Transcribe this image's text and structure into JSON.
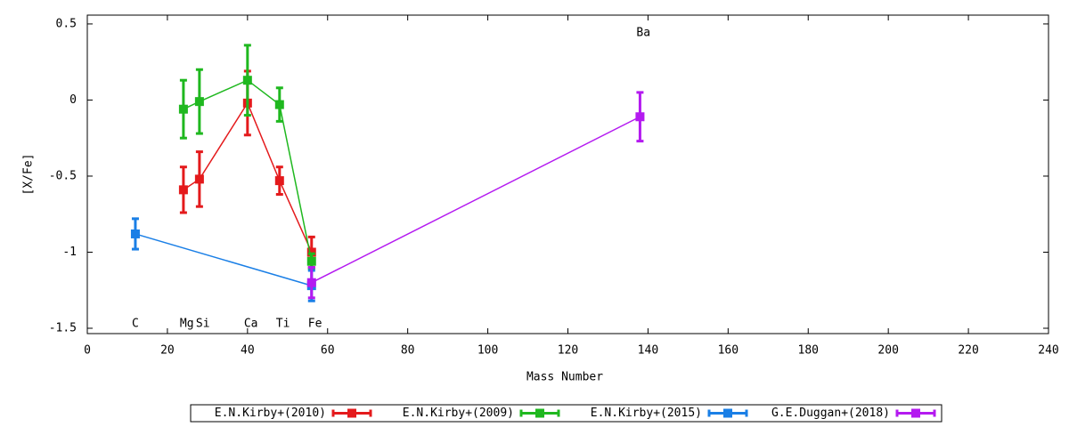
{
  "chart_data": {
    "type": "errorbar-line",
    "xlabel": "Mass Number",
    "ylabel": "[X/Fe]",
    "xlim": [
      0,
      240
    ],
    "ylim": [
      -1.535,
      0.558
    ],
    "xticks": [
      0,
      20,
      40,
      60,
      80,
      100,
      120,
      140,
      160,
      180,
      200,
      220,
      240
    ],
    "yticks": [
      0.5,
      0,
      -0.5,
      -1,
      -1.5
    ],
    "annotations": [
      {
        "text": "C",
        "x": 12,
        "y": -1.47
      },
      {
        "text": "Mg",
        "x": 24,
        "y": -1.47
      },
      {
        "text": "Si",
        "x": 28,
        "y": -1.47
      },
      {
        "text": "Ca",
        "x": 40,
        "y": -1.47
      },
      {
        "text": "Ti",
        "x": 48,
        "y": -1.47
      },
      {
        "text": "Fe",
        "x": 56,
        "y": -1.47
      },
      {
        "text": "Ba",
        "x": 138,
        "y": 0.44
      }
    ],
    "legend": "bottom",
    "series": [
      {
        "name": "E.N.Kirby+(2010)",
        "color": "#e41a1c",
        "x": [
          24,
          28,
          40,
          48,
          56
        ],
        "values": [
          -0.59,
          -0.52,
          -0.02,
          -0.53,
          -1.0
        ],
        "errors": [
          0.15,
          0.18,
          0.21,
          0.09,
          0.1
        ]
      },
      {
        "name": "E.N.Kirby+(2009)",
        "color": "#1fb81f",
        "x": [
          24,
          28,
          40,
          48,
          56
        ],
        "values": [
          -0.06,
          -0.01,
          0.13,
          -0.03,
          -1.06
        ],
        "errors": [
          0.19,
          0.21,
          0.23,
          0.11,
          0.05
        ]
      },
      {
        "name": "E.N.Kirby+(2015)",
        "color": "#1a7fe6",
        "x": [
          12,
          56
        ],
        "values": [
          -0.88,
          -1.22
        ],
        "errors": [
          0.1,
          0.1
        ]
      },
      {
        "name": "G.E.Duggan+(2018)",
        "color": "#b41af0",
        "x": [
          56,
          138
        ],
        "values": [
          -1.2,
          -0.11
        ],
        "errors": [
          0.1,
          0.16
        ]
      }
    ]
  }
}
